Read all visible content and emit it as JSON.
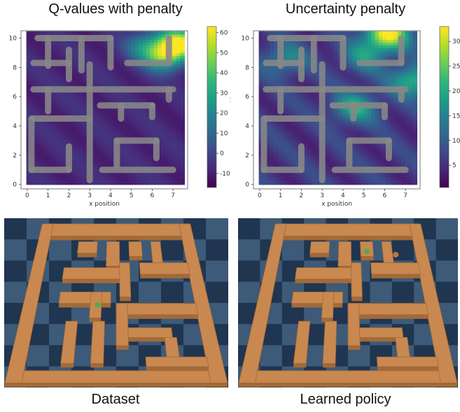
{
  "figure": {
    "title_left": "Q-values with penalty",
    "title_right": "Uncertainty penalty",
    "caption_left": "Dataset",
    "caption_right": "Learned policy"
  },
  "colors": {
    "viridis": [
      "#440154",
      "#482878",
      "#3e4989",
      "#31688e",
      "#26828e",
      "#1f9e89",
      "#35b779",
      "#6ece58",
      "#b5de2b",
      "#fde725"
    ],
    "trajectory": "#888888",
    "maze_wall": "#c9884f",
    "maze_wall_dark": "#a36a38",
    "floor_light": "#3d5a78",
    "floor_dark": "#1f3550",
    "agent": "#4caf50",
    "goal": "#b9783f"
  },
  "chart_data": [
    {
      "type": "heatmap",
      "title": "Q-values with penalty",
      "xlabel": "x position",
      "ylabel": "y position",
      "xlim": [
        -0.3,
        7.7
      ],
      "ylim": [
        -0.3,
        10.5
      ],
      "xticks": [
        0,
        1,
        2,
        3,
        4,
        5,
        6,
        7
      ],
      "yticks": [
        0,
        2,
        4,
        6,
        8,
        10
      ],
      "colorbar": {
        "min": -17,
        "max": 63,
        "ticks": [
          60,
          50,
          40,
          30,
          20,
          10,
          0,
          -10
        ]
      },
      "grid": false,
      "hotspots": [
        {
          "x": 7.2,
          "y": 9.6,
          "value": 63
        },
        {
          "x": 6.5,
          "y": 8.6,
          "value": 40
        },
        {
          "x": 5.6,
          "y": 9.4,
          "value": 20
        }
      ],
      "base_value": -8
    },
    {
      "type": "heatmap",
      "title": "Uncertainty penalty",
      "xlabel": "x position",
      "ylabel": "",
      "xlim": [
        -0.3,
        7.7
      ],
      "ylim": [
        -0.3,
        10.5
      ],
      "xticks": [
        0,
        1,
        2,
        3,
        4,
        5,
        6,
        7
      ],
      "yticks": [
        0,
        2,
        4,
        6,
        8,
        10
      ],
      "colorbar": {
        "min": 0.5,
        "max": 33,
        "ticks": [
          30,
          25,
          20,
          15,
          10,
          5
        ]
      },
      "grid": false,
      "hotspots": [
        {
          "x": 6.1,
          "y": 10.2,
          "value": 33
        },
        {
          "x": 7.3,
          "y": 7.0,
          "value": 22
        },
        {
          "x": 4.5,
          "y": 5.2,
          "value": 20
        },
        {
          "x": 5.0,
          "y": 8.7,
          "value": 17
        },
        {
          "x": 1.2,
          "y": 8.5,
          "value": 16
        }
      ],
      "base_value": 6
    }
  ],
  "maze": {
    "corridors": [
      [
        [
          0.5,
          10
        ],
        [
          4,
          10
        ]
      ],
      [
        [
          1,
          10
        ],
        [
          1,
          8.1
        ]
      ],
      [
        [
          0.3,
          8.3
        ],
        [
          2,
          8.3
        ]
      ],
      [
        [
          2,
          9.2
        ],
        [
          2,
          7.2
        ]
      ],
      [
        [
          2.6,
          7.8
        ],
        [
          2.6,
          10
        ]
      ],
      [
        [
          4,
          10
        ],
        [
          4,
          8
        ]
      ],
      [
        [
          0.3,
          6.5
        ],
        [
          3,
          6.5
        ]
      ],
      [
        [
          3,
          8.2
        ],
        [
          3,
          0.3
        ]
      ],
      [
        [
          3,
          6.5
        ],
        [
          7,
          6.5
        ]
      ],
      [
        [
          6.8,
          6.5
        ],
        [
          6.8,
          5.8
        ]
      ],
      [
        [
          1,
          6.5
        ],
        [
          1,
          5
        ]
      ],
      [
        [
          3.5,
          5.4
        ],
        [
          6,
          5.4
        ]
      ],
      [
        [
          6,
          5.4
        ],
        [
          6,
          4.6
        ]
      ],
      [
        [
          4.5,
          5.4
        ],
        [
          4.5,
          4.5
        ]
      ],
      [
        [
          0.3,
          4.5
        ],
        [
          3,
          4.5
        ]
      ],
      [
        [
          0.2,
          4.5
        ],
        [
          0.2,
          1
        ]
      ],
      [
        [
          0.2,
          1
        ],
        [
          2,
          1
        ]
      ],
      [
        [
          2,
          1
        ],
        [
          2,
          2.6
        ]
      ],
      [
        [
          3.6,
          1
        ],
        [
          7,
          1
        ]
      ],
      [
        [
          4.3,
          1.3
        ],
        [
          4.3,
          3
        ]
      ],
      [
        [
          4.3,
          3
        ],
        [
          6.2,
          3
        ]
      ],
      [
        [
          6.2,
          3
        ],
        [
          6.2,
          1.8
        ]
      ],
      [
        [
          4.8,
          8.3
        ],
        [
          6.8,
          8.3
        ]
      ],
      [
        [
          6.8,
          8.3
        ],
        [
          6.8,
          10
        ]
      ]
    ]
  }
}
